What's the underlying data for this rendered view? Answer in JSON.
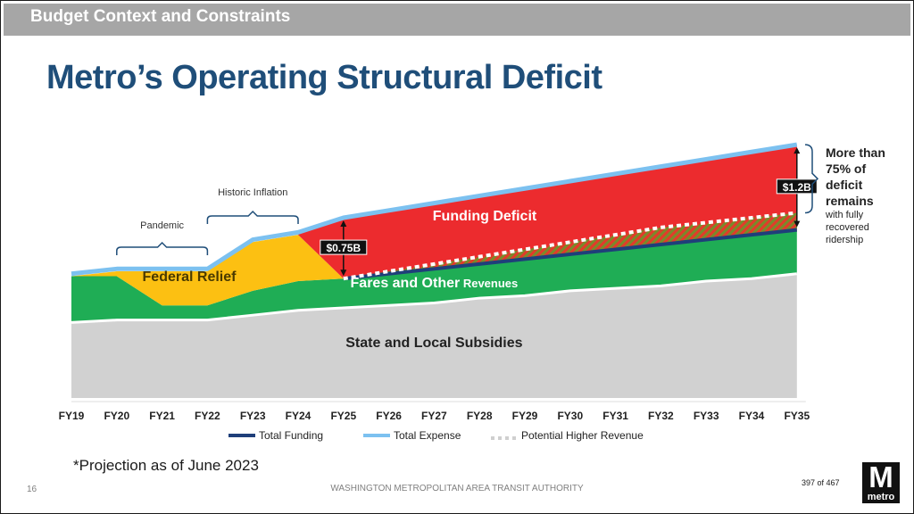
{
  "header": {
    "section": "Budget Context and Constraints"
  },
  "title": "Metro’s Operating Structural Deficit",
  "colors": {
    "subsidies": "#d1d1d1",
    "fares": "#1fad55",
    "federal": "#fcc012",
    "deficit": "#ec2b2e",
    "total_funding": "#1f3f7a",
    "total_expense": "#7cc1f0",
    "title": "#1f4e79"
  },
  "chart_data": {
    "type": "area",
    "x": [
      "FY19",
      "FY20",
      "FY21",
      "FY22",
      "FY23",
      "FY24",
      "FY25",
      "FY26",
      "FY27",
      "FY28",
      "FY29",
      "FY30",
      "FY31",
      "FY32",
      "FY33",
      "FY34",
      "FY35"
    ],
    "units": "relative funding level (0–100, unlabeled axis)",
    "series": [
      {
        "name": "State and Local Subsidies",
        "values": [
          31,
          32,
          32,
          32,
          34,
          36,
          37,
          38,
          39,
          41,
          42,
          44,
          45,
          46,
          48,
          49,
          51
        ]
      },
      {
        "name": "Fares and Other Revenues",
        "values": [
          50,
          50,
          38,
          38,
          44,
          48,
          49,
          51,
          53,
          55,
          57,
          59,
          61,
          63,
          65,
          67,
          69
        ]
      },
      {
        "name": "Federal Relief",
        "values": [
          50,
          52,
          52,
          52,
          64,
          67,
          49,
          null,
          null,
          null,
          null,
          null,
          null,
          null,
          null,
          null,
          null
        ]
      },
      {
        "name": "Total Funding",
        "values": [
          null,
          null,
          null,
          null,
          null,
          null,
          49,
          51,
          53,
          55,
          57,
          59,
          61,
          63,
          65,
          67,
          69
        ]
      },
      {
        "name": "Total Expense",
        "values": [
          51,
          53,
          53,
          53,
          65,
          68,
          74,
          77,
          80,
          83,
          86,
          89,
          92,
          95,
          98,
          101,
          104
        ]
      },
      {
        "name": "Potential Higher Revenue",
        "values": [
          null,
          null,
          null,
          null,
          null,
          null,
          49,
          52,
          55,
          58,
          61,
          64,
          67,
          70,
          72,
          74,
          76
        ]
      }
    ],
    "area_labels": {
      "subsidies": "State and Local Subsidies",
      "fares_main": "Fares and Other",
      "fares_small": " Revenues",
      "federal": "Federal Relief",
      "deficit": "Funding Deficit"
    },
    "annotations": [
      {
        "text": "Pandemic",
        "from": "FY20",
        "to": "FY22"
      },
      {
        "text": "Historic Inflation",
        "from": "FY22",
        "to": "FY24"
      },
      {
        "text": "$0.75B",
        "at": "FY25",
        "value_billion": 0.75
      },
      {
        "text": "$1.2B",
        "at": "FY35",
        "value_billion": 1.2
      }
    ],
    "side_note": {
      "bold_lines": [
        "More than",
        "75% of",
        "deficit",
        "remains"
      ],
      "small_lines": [
        "with fully",
        "recovered",
        "ridership"
      ]
    },
    "legend": [
      {
        "label": "Total Funding",
        "style": "solid",
        "color": "#1f3f7a"
      },
      {
        "label": "Total Expense",
        "style": "solid",
        "color": "#7cc1f0"
      },
      {
        "label": "Potential Higher Revenue",
        "style": "dotted",
        "color": "#cfcfcf"
      }
    ]
  },
  "footnote": "*Projection as of June 2023",
  "footer": {
    "page": "16",
    "org": "WASHINGTON METROPOLITAN AREA TRANSIT AUTHORITY",
    "page_count": "397 of 467",
    "logo_letter": "M",
    "logo_word": "metro"
  }
}
